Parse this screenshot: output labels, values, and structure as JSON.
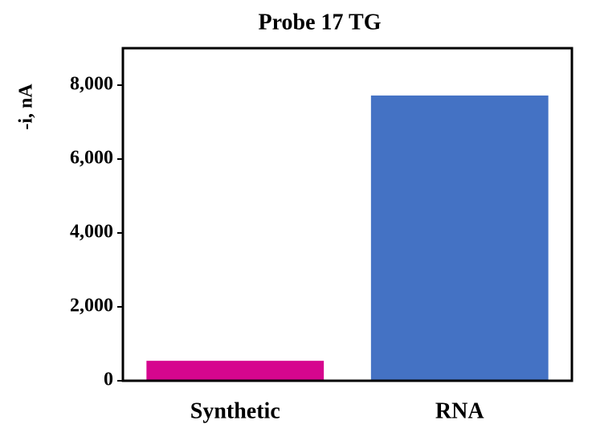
{
  "chart_data": {
    "type": "bar",
    "title": "Probe 17 TG",
    "y_label": "-i, nA",
    "categories": [
      "Synthetic",
      "RNA"
    ],
    "values": [
      540,
      7720
    ],
    "colors": [
      "#d6068e",
      "#4472c4"
    ],
    "ylim": [
      0,
      9000
    ],
    "yticks": [
      0,
      {
        "value": 2000,
        "label": "2,000"
      },
      {
        "value": 4000,
        "label": "4,000"
      },
      {
        "value": 6000,
        "label": "6,000"
      },
      {
        "value": 8000,
        "label": "8,000"
      }
    ],
    "grid": false
  }
}
